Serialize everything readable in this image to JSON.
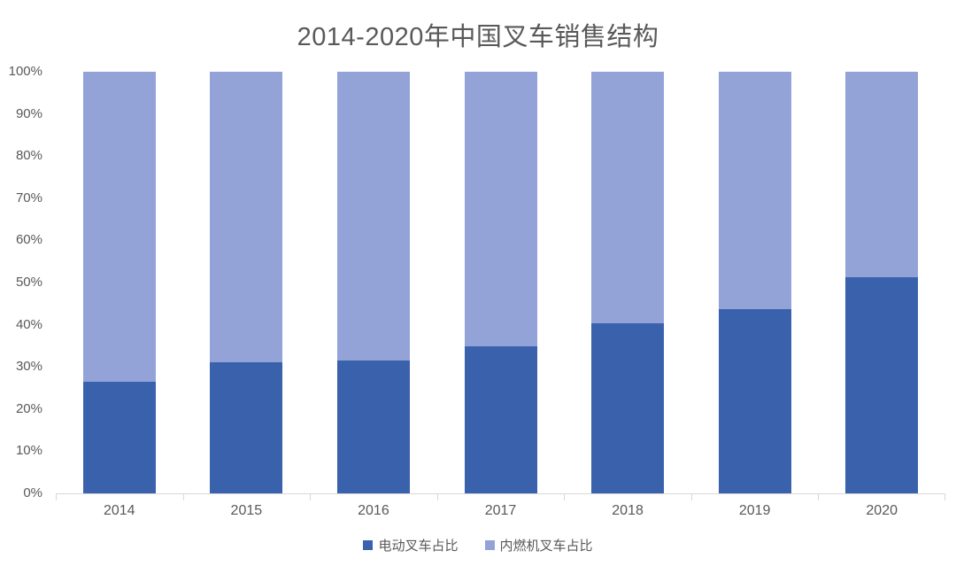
{
  "title": "2014-2020年中国叉车销售结构",
  "colors": {
    "series_electric": "#3a62ac",
    "series_combustion": "#93a3d8",
    "axis_line": "#d9d9d9",
    "text": "#595959",
    "background": "#ffffff"
  },
  "chart_data": {
    "type": "bar",
    "subtype": "stacked-100",
    "title": "2014-2020年中国叉车销售结构",
    "categories": [
      "2014",
      "2015",
      "2016",
      "2017",
      "2018",
      "2019",
      "2020"
    ],
    "series": [
      {
        "name": "电动叉车占比",
        "color": "#3a62ac",
        "values": [
          26.5,
          31.0,
          31.6,
          34.9,
          40.3,
          43.8,
          51.3
        ]
      },
      {
        "name": "内燃机叉车占比",
        "color": "#93a3d8",
        "values": [
          73.5,
          69.0,
          68.4,
          65.1,
          59.7,
          56.2,
          48.7
        ]
      }
    ],
    "xlabel": "",
    "ylabel": "",
    "ylim": [
      0,
      100
    ],
    "y_tick_labels": [
      "0%",
      "10%",
      "20%",
      "30%",
      "40%",
      "50%",
      "60%",
      "70%",
      "80%",
      "90%",
      "100%"
    ],
    "grid": false,
    "legend_position": "bottom"
  }
}
